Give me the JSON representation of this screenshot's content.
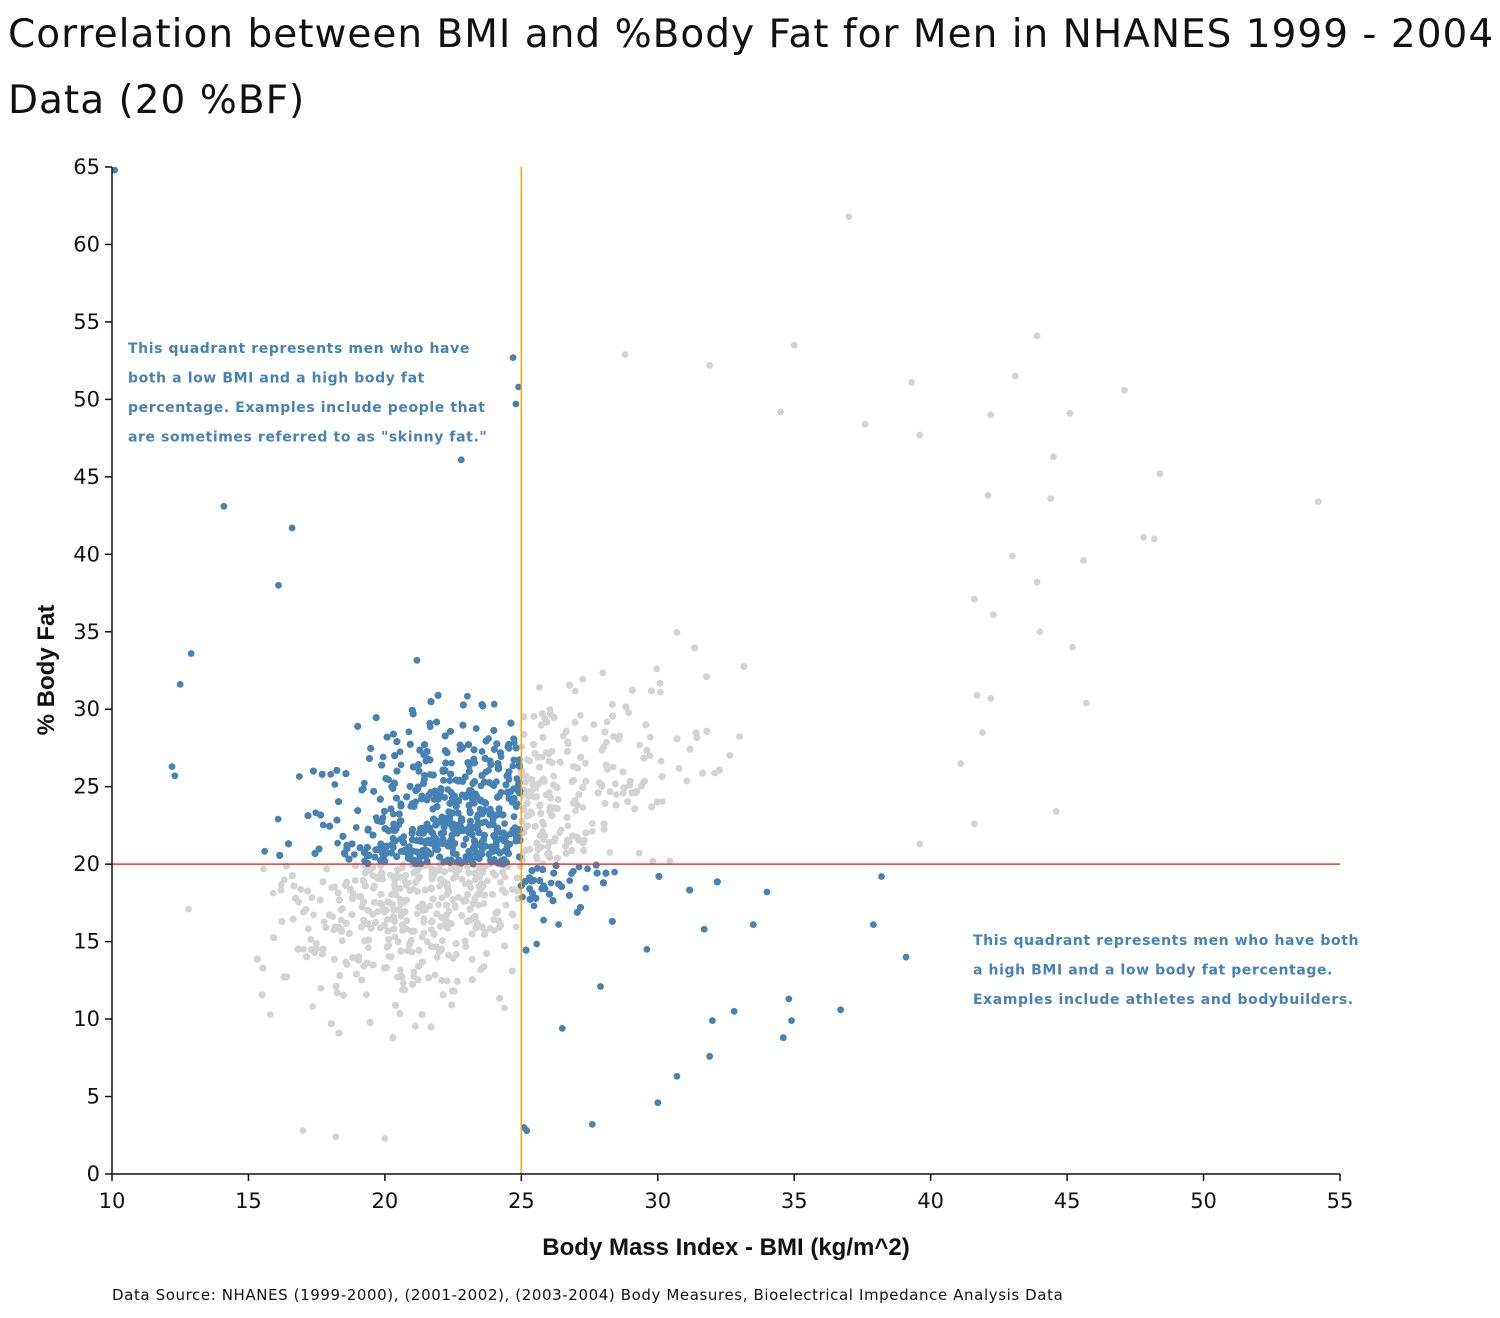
{
  "chart_data": {
    "type": "scatter",
    "title": "Correlation between BMI and %Body Fat for Men in NHANES 1999 - 2004 Data (20 %BF)",
    "xlabel": "Body Mass Index - BMI (kg/m^2)",
    "ylabel": "% Body Fat",
    "xlim": [
      10,
      55
    ],
    "ylim": [
      0,
      65
    ],
    "x_ticks": [
      10,
      15,
      20,
      25,
      30,
      35,
      40,
      45,
      50,
      55
    ],
    "y_ticks": [
      0,
      5,
      10,
      15,
      20,
      25,
      30,
      35,
      40,
      45,
      50,
      55,
      60,
      65
    ],
    "thresholds": {
      "bmi": 25,
      "body_fat": 20
    },
    "colors": {
      "highlight": "#4682b4",
      "background_points": "#d3d3d3",
      "bmi_line": "#ffa500",
      "bodyfat_line": "#e03c31",
      "axis": "#111111"
    },
    "annotations": [
      {
        "quadrant": "top-left",
        "lines": [
          "This quadrant represents men who have",
          "both a low BMI and a high body fat",
          "percentage. Examples include people that",
          "are sometimes referred to as \"skinny fat.\""
        ]
      },
      {
        "quadrant": "bottom-right",
        "lines": [
          "This quadrant represents men who have both",
          "a high BMI and a low body fat percentage.",
          "Examples include athletes and bodybuilders."
        ]
      }
    ],
    "source": "Data Source: NHANES (1999-2000), (2001-2002), (2003-2004) Body Measures, Bioelectrical Impedance Analysis Data",
    "points": [
      [
        10.1,
        64.8
      ],
      [
        37.0,
        61.8
      ],
      [
        43.9,
        54.1
      ],
      [
        35.0,
        53.5
      ],
      [
        28.8,
        52.9
      ],
      [
        24.7,
        52.7
      ],
      [
        31.9,
        52.2
      ],
      [
        43.1,
        51.5
      ],
      [
        39.3,
        51.1
      ],
      [
        24.9,
        50.8
      ],
      [
        47.1,
        50.6
      ],
      [
        45.1,
        49.1
      ],
      [
        24.8,
        49.7
      ],
      [
        42.2,
        49.0
      ],
      [
        34.5,
        49.2
      ],
      [
        37.6,
        48.4
      ],
      [
        39.6,
        47.7
      ],
      [
        22.8,
        46.1
      ],
      [
        44.5,
        46.3
      ],
      [
        48.4,
        45.2
      ],
      [
        14.1,
        43.1
      ],
      [
        54.2,
        43.4
      ],
      [
        44.4,
        43.6
      ],
      [
        42.1,
        43.8
      ],
      [
        47.8,
        41.1
      ],
      [
        48.2,
        41.0
      ],
      [
        16.6,
        41.7
      ],
      [
        45.6,
        39.6
      ],
      [
        43.0,
        39.9
      ],
      [
        43.9,
        38.2
      ],
      [
        16.1,
        38.0
      ],
      [
        41.6,
        37.1
      ],
      [
        42.3,
        36.1
      ],
      [
        44.0,
        35.0
      ],
      [
        45.2,
        34.0
      ],
      [
        12.9,
        33.6
      ],
      [
        12.5,
        31.6
      ],
      [
        45.7,
        30.4
      ],
      [
        41.7,
        30.9
      ],
      [
        42.2,
        30.7
      ],
      [
        41.9,
        28.5
      ],
      [
        41.1,
        26.5
      ],
      [
        12.2,
        26.3
      ],
      [
        12.3,
        25.7
      ],
      [
        41.6,
        22.6
      ],
      [
        44.6,
        23.4
      ],
      [
        39.6,
        21.3
      ],
      [
        12.8,
        17.1
      ],
      [
        38.2,
        19.2
      ],
      [
        37.9,
        16.1
      ],
      [
        39.1,
        14.0
      ],
      [
        36.7,
        10.6
      ],
      [
        34.8,
        11.3
      ],
      [
        34.9,
        9.9
      ],
      [
        34.6,
        8.8
      ],
      [
        32.8,
        10.5
      ],
      [
        32.0,
        9.9
      ],
      [
        31.9,
        7.6
      ],
      [
        30.7,
        6.3
      ],
      [
        30.0,
        4.6
      ],
      [
        27.6,
        3.2
      ],
      [
        25.2,
        2.8
      ],
      [
        25.1,
        3.0
      ],
      [
        20.0,
        2.3
      ],
      [
        18.2,
        2.4
      ],
      [
        17.0,
        2.8
      ],
      [
        26.5,
        9.4
      ],
      [
        27.9,
        12.1
      ],
      [
        29.6,
        14.5
      ],
      [
        31.7,
        15.8
      ],
      [
        33.5,
        16.1
      ],
      [
        34.0,
        18.2
      ]
    ]
  }
}
